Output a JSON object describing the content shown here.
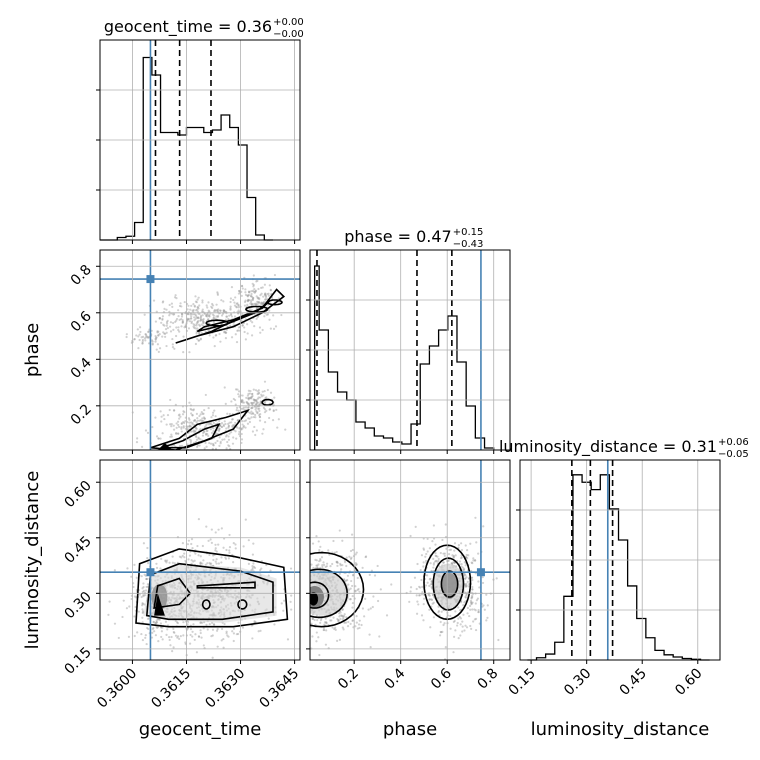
{
  "chart_data": {
    "type": "corner",
    "parameters": [
      "geocent_time",
      "phase",
      "luminosity_distance"
    ],
    "truth": {
      "geocent_time": 0.3605,
      "phase": 0.745,
      "luminosity_distance": 0.357
    },
    "grid": true,
    "diagonals": [
      {
        "parameter": "geocent_time",
        "title_prefix": "geocent_time = 0.36",
        "title_plus": "+0.00",
        "title_minus": "−0.00",
        "quantiles": [
          0.36064,
          0.36131,
          0.36218
        ],
        "xlim": [
          0.3591,
          0.36465
        ],
        "bin_edges": [
          0.3591,
          0.35934,
          0.35958,
          0.35982,
          0.36006,
          0.3603,
          0.36054,
          0.36078,
          0.36102,
          0.36126,
          0.3615,
          0.36174,
          0.36198,
          0.36222,
          0.36246,
          0.3627,
          0.36294,
          0.36318,
          0.36342,
          0.36366,
          0.3639
        ],
        "counts": [
          0,
          0,
          1,
          1.5,
          7,
          73,
          66,
          43,
          43,
          42,
          45,
          45,
          43,
          44,
          50,
          45,
          38,
          17,
          2,
          0
        ],
        "ylim": [
          0,
          80
        ],
        "xticks": [
          0.36,
          0.3615,
          0.363,
          0.3645
        ]
      },
      {
        "parameter": "phase",
        "title_prefix": "phase = 0.47",
        "title_plus": "+0.15",
        "title_minus": "−0.43",
        "quantiles": [
          0.04,
          0.47,
          0.62
        ],
        "xlim": [
          0.01,
          0.87
        ],
        "bin_edges": [
          0.03,
          0.0495,
          0.089,
          0.1285,
          0.168,
          0.2075,
          0.247,
          0.2865,
          0.326,
          0.3655,
          0.405,
          0.4445,
          0.484,
          0.5235,
          0.563,
          0.6025,
          0.642,
          0.6815,
          0.721,
          0.7605,
          0.8
        ],
        "counts": [
          92,
          60,
          39,
          29,
          25,
          14,
          11,
          7,
          6,
          4,
          3,
          13,
          43,
          52,
          60,
          67,
          44,
          22,
          6,
          1
        ],
        "ylim": [
          0,
          100
        ],
        "xticks": [
          0.2,
          0.4,
          0.6,
          0.8
        ]
      },
      {
        "parameter": "luminosity_distance",
        "title_prefix": "luminosity_distance = 0.31",
        "title_plus": "+0.06",
        "title_minus": "−0.05",
        "quantiles": [
          0.26,
          0.31,
          0.37
        ],
        "xlim": [
          0.12,
          0.66
        ],
        "bin_edges": [
          0.14,
          0.1646,
          0.1892,
          0.2138,
          0.2384,
          0.263,
          0.2876,
          0.3122,
          0.3368,
          0.3614,
          0.386,
          0.4106,
          0.4352,
          0.4598,
          0.4844,
          0.509,
          0.5336,
          0.5582,
          0.5828,
          0.6074,
          0.632
        ],
        "counts": [
          0,
          1.5,
          4,
          12,
          43,
          125,
          120,
          115,
          125,
          102,
          81,
          50,
          28,
          15,
          6.5,
          3.5,
          2,
          1,
          0.5,
          0
        ],
        "ylim": [
          0,
          135
        ],
        "xticks": [
          0.15,
          0.3,
          0.45,
          0.6
        ]
      }
    ],
    "pairs": [
      {
        "x": "geocent_time",
        "y": "phase",
        "xlim": [
          0.3591,
          0.36465
        ],
        "ylim": [
          0.01,
          0.87
        ],
        "yticks": [
          0.2,
          0.4,
          0.6,
          0.8
        ]
      },
      {
        "x": "geocent_time",
        "y": "luminosity_distance",
        "xlim": [
          0.3591,
          0.36465
        ],
        "ylim": [
          0.12,
          0.66
        ],
        "yticks": [
          0.15,
          0.3,
          0.45,
          0.6
        ]
      },
      {
        "x": "phase",
        "y": "luminosity_distance",
        "xlim": [
          0.01,
          0.87
        ],
        "ylim": [
          0.12,
          0.66
        ]
      }
    ],
    "xlabels": [
      "geocent_time",
      "phase",
      "luminosity_distance"
    ],
    "ylabels": [
      "phase",
      "luminosity_distance"
    ],
    "colors": {
      "truth": "#4682b4",
      "hist": "#000000",
      "grid": "#b0b0b0",
      "points": "#9a9a9a"
    }
  }
}
